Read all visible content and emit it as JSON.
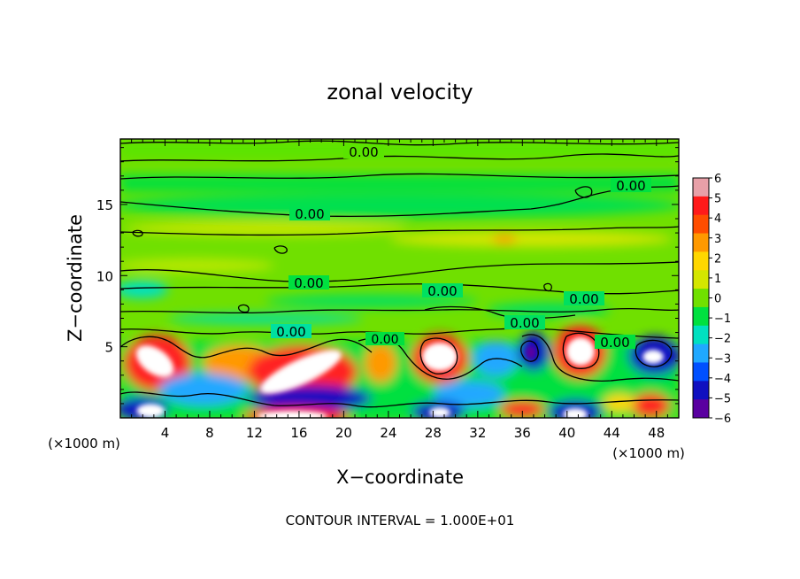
{
  "chart_data": {
    "type": "heatmap",
    "title": "zonal velocity",
    "xlabel": "X−coordinate",
    "ylabel": "Z−coordinate",
    "x_unit_left": "(×1000 m)",
    "x_unit_right": "(×1000 m)",
    "xlim": [
      0,
      50
    ],
    "ylim": [
      0,
      19.6
    ],
    "x_ticks": [
      4,
      8,
      12,
      16,
      20,
      24,
      28,
      32,
      36,
      40,
      44,
      48
    ],
    "y_ticks": [
      5,
      10,
      15
    ],
    "colorbar": {
      "range": [
        -6,
        6
      ],
      "tick_labels": [
        "6",
        "5",
        "4",
        "3",
        "2",
        "1",
        "0",
        "−1",
        "−2",
        "−3",
        "−4",
        "−5",
        "−6"
      ],
      "colors": [
        "#e8a0a8",
        "#ff1a1a",
        "#ff4d00",
        "#ff9900",
        "#ffd700",
        "#d4e600",
        "#70e000",
        "#00e040",
        "#00e0c0",
        "#20a8ff",
        "#0050ff",
        "#1010c0",
        "#5a00a0"
      ]
    },
    "contour_labels": [
      "0.00",
      "0.00",
      "0.00",
      "0.00",
      "0.00",
      "0.00",
      "0.00",
      "0.00",
      "0.00",
      "0.00"
    ],
    "footer": "CONTOUR INTERVAL = 1.000E+01"
  }
}
